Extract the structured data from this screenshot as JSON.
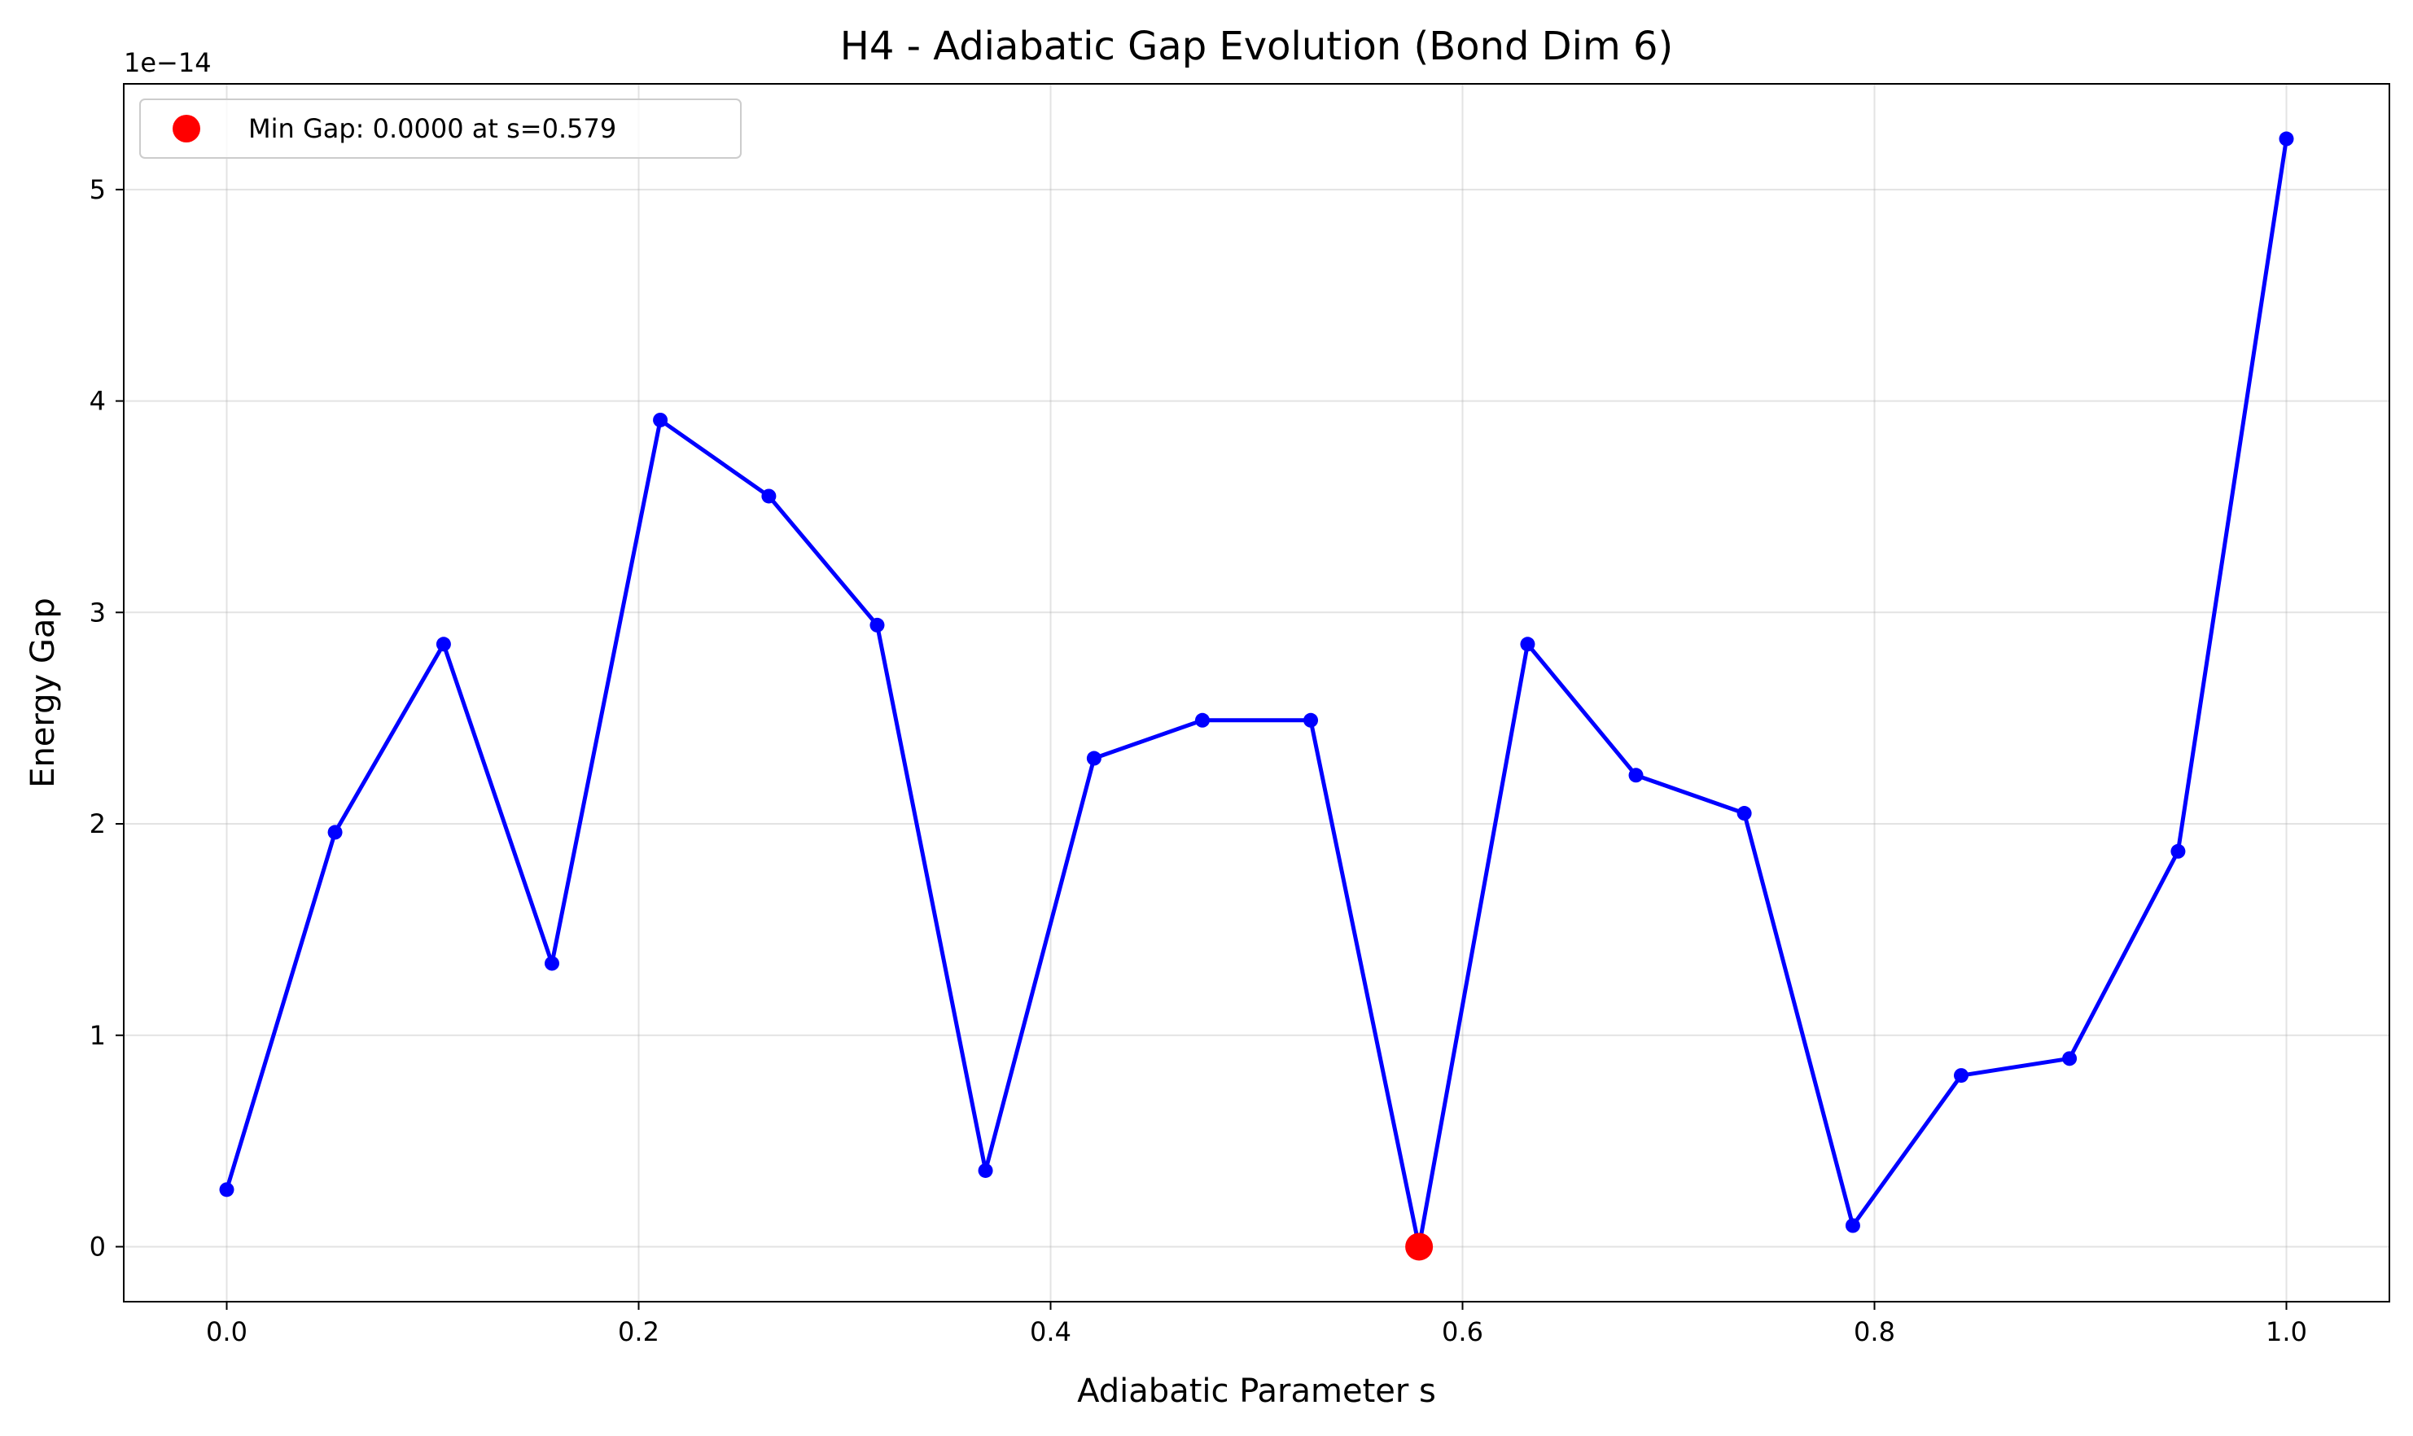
{
  "chart_data": {
    "type": "line",
    "title": "H4 - Adiabatic Gap Evolution (Bond Dim 6)",
    "xlabel": "Adiabatic Parameter s",
    "ylabel": "Energy Gap",
    "y_offset_text": "1e−14",
    "xlim": [
      -0.05,
      1.05
    ],
    "ylim": [
      -0.26,
      5.5
    ],
    "x_ticks": [
      0.0,
      0.2,
      0.4,
      0.6,
      0.8,
      1.0
    ],
    "x_tick_labels": [
      "0.0",
      "0.2",
      "0.4",
      "0.6",
      "0.8",
      "1.0"
    ],
    "y_ticks": [
      0,
      1,
      2,
      3,
      4,
      5
    ],
    "y_tick_labels": [
      "0",
      "1",
      "2",
      "3",
      "4",
      "5"
    ],
    "grid": true,
    "legend_position": "top-left",
    "series": [
      {
        "color": "#0000ff",
        "x": [
          0.0,
          0.0526,
          0.1053,
          0.1579,
          0.2105,
          0.2632,
          0.3158,
          0.3684,
          0.4211,
          0.4737,
          0.5263,
          0.5789,
          0.6316,
          0.6842,
          0.7368,
          0.7895,
          0.8421,
          0.8947,
          0.9474,
          1.0
        ],
        "y": [
          0.27,
          1.96,
          2.85,
          1.34,
          3.91,
          3.55,
          2.94,
          0.36,
          2.31,
          2.49,
          2.49,
          0.0,
          2.85,
          2.23,
          2.05,
          0.1,
          0.81,
          0.89,
          1.87,
          5.24
        ]
      }
    ],
    "annotations": [
      {
        "type": "point",
        "label": "Min Gap: 0.0000 at s=0.579",
        "x": 0.5789,
        "y": 0.0,
        "color": "#ff0000"
      }
    ]
  }
}
